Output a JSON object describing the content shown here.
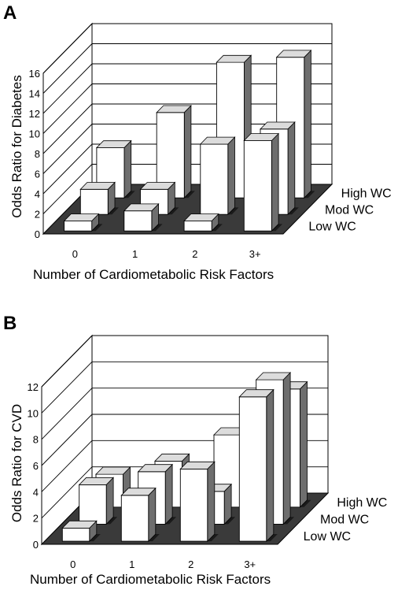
{
  "chart_data": [
    {
      "panel": "A",
      "type": "bar3d",
      "ylabel": "Odds Ratio for Diabetes",
      "xlabel": "Number of Cardiometabolic Risk Factors",
      "categories": [
        "0",
        "1",
        "2",
        "3+"
      ],
      "ylim": [
        0,
        16
      ],
      "yticks": [
        "0",
        "2",
        "4",
        "6",
        "8",
        "10",
        "12",
        "14",
        "16"
      ],
      "grid": true,
      "series": [
        {
          "name": "Low WC",
          "values": [
            1.0,
            2.0,
            1.0,
            9.0
          ]
        },
        {
          "name": "Mod WC",
          "values": [
            2.5,
            2.5,
            7.0,
            8.5
          ]
        },
        {
          "name": "High WC",
          "values": [
            5.0,
            8.5,
            13.5,
            14.0
          ]
        }
      ]
    },
    {
      "panel": "B",
      "type": "bar3d",
      "ylabel": "Odds Ratio for CVD",
      "xlabel": "Number of Cardiometabolic Risk Factors",
      "categories": [
        "0",
        "1",
        "2",
        "3+"
      ],
      "ylim": [
        0,
        12
      ],
      "yticks": [
        "0",
        "2",
        "4",
        "6",
        "8",
        "10",
        "12"
      ],
      "grid": true,
      "series": [
        {
          "name": "Low WC",
          "values": [
            1.0,
            3.5,
            5.5,
            11.0
          ]
        },
        {
          "name": "Mod WC",
          "values": [
            3.0,
            4.0,
            2.5,
            11.0
          ]
        },
        {
          "name": "High WC",
          "values": [
            2.5,
            3.5,
            5.5,
            9.0
          ]
        }
      ]
    }
  ]
}
